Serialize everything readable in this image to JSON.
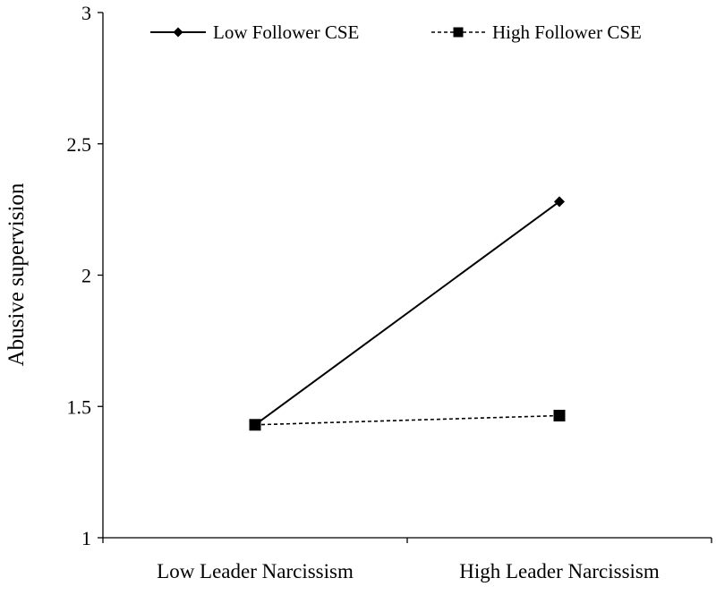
{
  "chart_data": {
    "type": "line",
    "title": "",
    "xlabel": "",
    "ylabel": "Abusive supervision",
    "categories": [
      "Low Leader Narcissism",
      "High Leader Narcissism"
    ],
    "ylim": [
      1,
      3
    ],
    "yticks": [
      1,
      1.5,
      2,
      2.5,
      3
    ],
    "ytick_labels": [
      "1",
      "1.5",
      "2",
      "2.5",
      "3"
    ],
    "grid": false,
    "legend": "top",
    "series": [
      {
        "name": "Low Follower CSE",
        "values": [
          1.43,
          2.28
        ],
        "line": "solid",
        "marker": "diamond",
        "color": "#000000"
      },
      {
        "name": "High Follower CSE",
        "values": [
          1.43,
          1.465
        ],
        "line": "dashed",
        "marker": "square",
        "color": "#000000"
      }
    ]
  }
}
